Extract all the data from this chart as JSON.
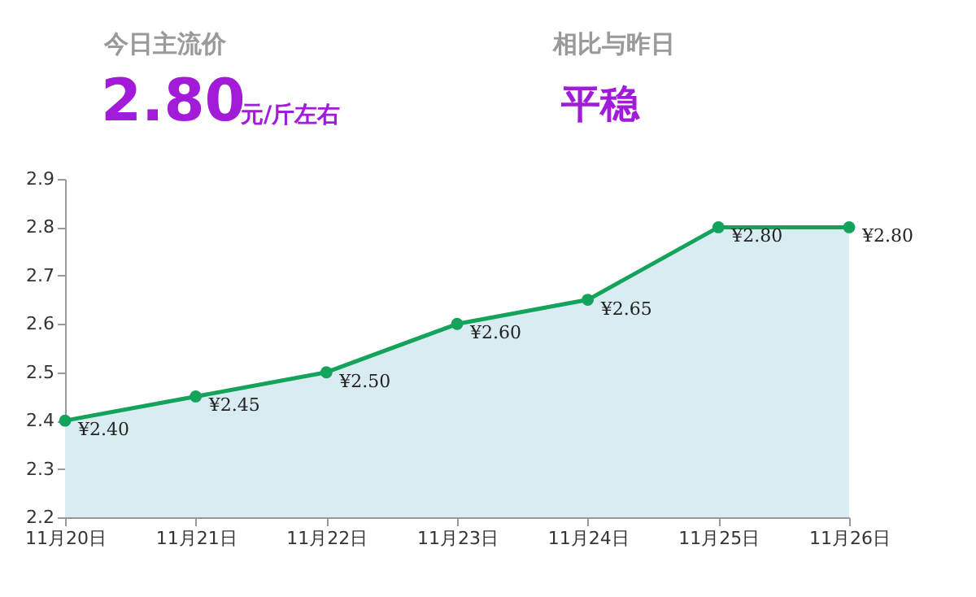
{
  "chart_data": {
    "type": "area",
    "annotations": [
      "今日主流价",
      "2.80",
      "元/斤左右",
      "相比与昨日",
      "平稳"
    ],
    "categories": [
      "11月20日",
      "11月21日",
      "11月22日",
      "11月23日",
      "11月24日",
      "11月25日",
      "11月26日"
    ],
    "series": [
      {
        "color": "#14a35a",
        "values": [
          2.4,
          2.45,
          2.5,
          2.6,
          2.65,
          2.8,
          2.8
        ],
        "value_labels": [
          "¥2.40",
          "¥2.45",
          "¥2.50",
          "¥2.60",
          "¥2.65",
          "¥2.80",
          "¥2.80"
        ]
      }
    ],
    "ylim": [
      2.2,
      2.9
    ],
    "yticks": [
      2.2,
      2.3,
      2.4,
      2.5,
      2.6,
      2.7,
      2.8,
      2.9
    ],
    "marker": "circle",
    "line_style": "solid"
  }
}
